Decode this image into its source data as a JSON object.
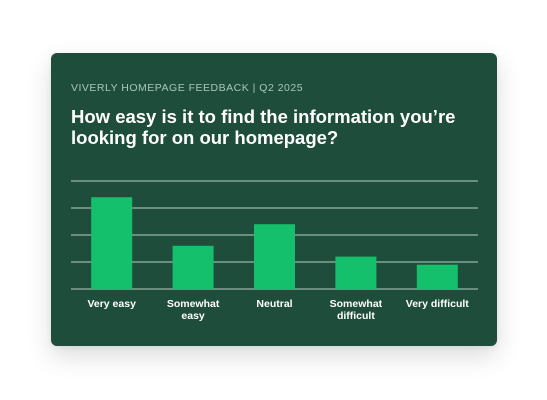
{
  "header": {
    "eyebrow": "VIVERLY HOMEPAGE FEEDBACK | Q2 2025",
    "question": "How easy is it to find the information you’re looking for on our homepage?"
  },
  "colors": {
    "card_background": "#1f4d3b",
    "bar": "#14c06b",
    "gridline": "#b7cfc2"
  },
  "chart_data": {
    "type": "bar",
    "title": "How easy is it to find the information you’re looking for on our homepage?",
    "categories": [
      "Very easy",
      "Somewhat easy",
      "Neutral",
      "Somewhat difficult",
      "Very difficult"
    ],
    "category_label_lines": [
      [
        "Very easy"
      ],
      [
        "Somewhat",
        "easy"
      ],
      [
        "Neutral"
      ],
      [
        "Somewhat",
        "difficult"
      ],
      [
        "Very difficult"
      ]
    ],
    "values": [
      34,
      16,
      24,
      12,
      9
    ],
    "ylim": [
      0,
      40
    ],
    "grid": true,
    "xlabel": "",
    "ylabel": ""
  }
}
